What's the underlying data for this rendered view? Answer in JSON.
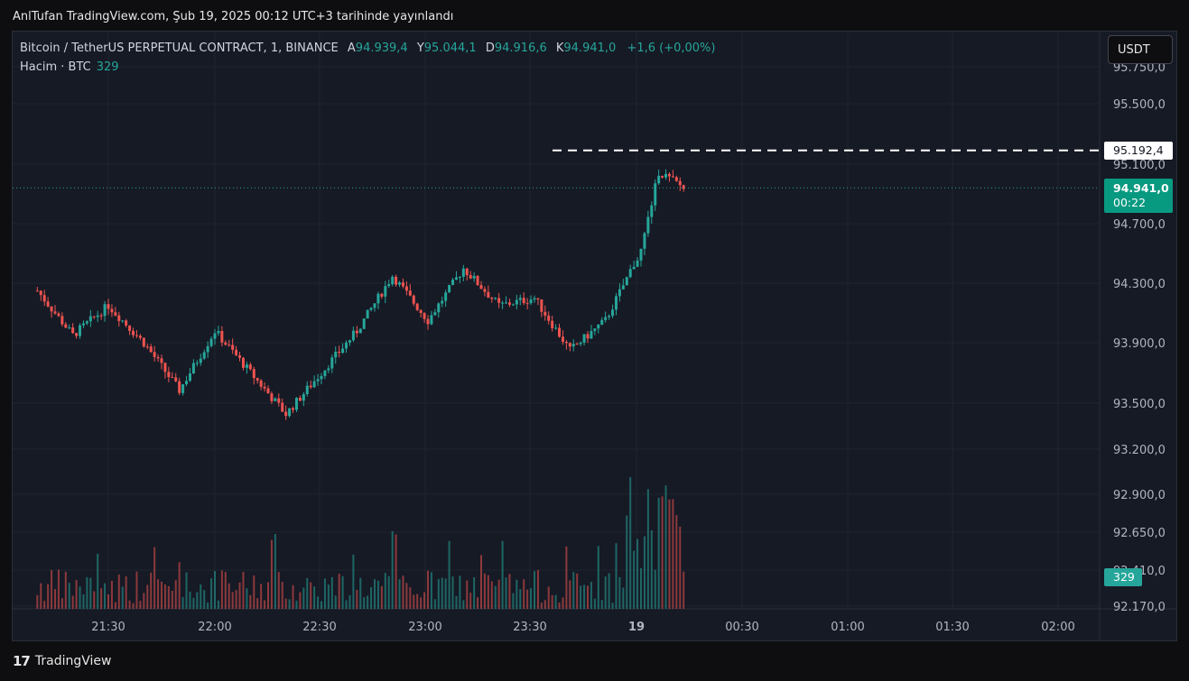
{
  "header": {
    "publish_text": "AnlTufan TradingView.com, Şub 19, 2025 00:12 UTC+3 tarihinde yayınlandı"
  },
  "legend": {
    "symbol": "Bitcoin / TetherUS PERPETUAL CONTRACT, 1, BINANCE",
    "open_label": "A",
    "open_value": "94.939,4",
    "high_label": "Y",
    "high_value": "95.044,1",
    "low_label": "D",
    "low_value": "94.916,6",
    "close_label": "K",
    "close_value": "94.941,0",
    "change": "+1,6 (+0,00%)"
  },
  "volume_legend": {
    "label": "Hacim · BTC",
    "value": "329"
  },
  "currency_button": "USDT",
  "footer": {
    "logo": "17",
    "brand": "TradingView"
  },
  "tags": {
    "high_line": "95.192,4",
    "last_price": "94.941,0",
    "countdown": "00:22",
    "volume": "329"
  },
  "colors": {
    "up": "#26a69a",
    "down": "#ef5350",
    "background": "#161a25",
    "grid": "#1f2430"
  },
  "chart_data": {
    "type": "candlestick",
    "y_ticks": [
      "95.750,0",
      "95.500,0",
      "95.100,0",
      "94.700,0",
      "94.300,0",
      "93.900,0",
      "93.500,0",
      "93.200,0",
      "92.900,0",
      "92.650,0",
      "92.410,0",
      "92.170,0"
    ],
    "x_ticks": [
      "21:30",
      "22:00",
      "22:30",
      "23:00",
      "23:30",
      "19",
      "00:30",
      "01:00",
      "01:30",
      "02:00"
    ],
    "x_tick_bold": "19",
    "high_line": 95192.4,
    "last_price": 94941.0,
    "close_path": [
      [
        "21:10",
        94250
      ],
      [
        "21:20",
        93950
      ],
      [
        "21:30",
        94150
      ],
      [
        "21:40",
        93900
      ],
      [
        "21:50",
        93580
      ],
      [
        "22:00",
        93980
      ],
      [
        "22:10",
        93700
      ],
      [
        "22:20",
        93420
      ],
      [
        "22:30",
        93700
      ],
      [
        "22:40",
        93980
      ],
      [
        "22:50",
        94350
      ],
      [
        "23:00",
        94050
      ],
      [
        "23:10",
        94400
      ],
      [
        "23:20",
        94150
      ],
      [
        "23:30",
        94200
      ],
      [
        "23:40",
        93850
      ],
      [
        "23:50",
        94050
      ],
      [
        "00:00",
        94520
      ],
      [
        "00:05",
        95050
      ],
      [
        "00:12",
        94941
      ]
    ]
  }
}
